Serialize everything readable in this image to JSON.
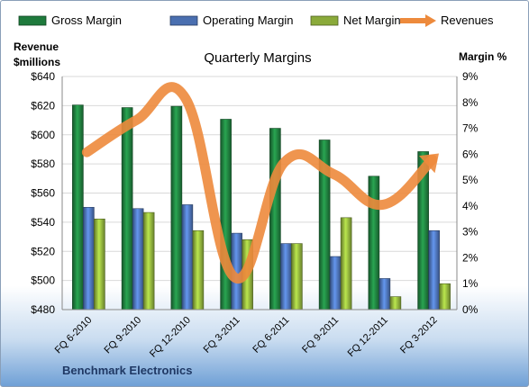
{
  "chart_data": {
    "type": "bar",
    "title": "Quarterly Margins",
    "categories": [
      "FQ 6-2010",
      "FQ 9-2010",
      "FQ 12-2010",
      "FQ 3-2011",
      "FQ 6-2011",
      "FQ 9-2011",
      "FQ 12-2011",
      "FQ 3-2012"
    ],
    "series": [
      {
        "name": "Gross Margin",
        "color": "#1e7a3c",
        "axis": "right",
        "unit": "%",
        "values": [
          7.9,
          7.8,
          7.85,
          7.35,
          7.0,
          6.55,
          5.15,
          6.1
        ]
      },
      {
        "name": "Operating Margin",
        "color": "#4a6fb0",
        "axis": "right",
        "unit": "%",
        "values": [
          3.95,
          3.9,
          4.05,
          2.95,
          2.55,
          2.05,
          1.2,
          3.05
        ]
      },
      {
        "name": "Net Margin",
        "color": "#8aaa3a",
        "axis": "right",
        "unit": "%",
        "values": [
          3.5,
          3.75,
          3.05,
          2.7,
          2.55,
          3.55,
          0.5,
          1.0
        ]
      },
      {
        "name": "Revenues",
        "type": "line",
        "color": "#ed8a3c",
        "axis": "left",
        "unit": "$millions",
        "values": [
          588,
          610,
          625,
          502,
          581,
          573,
          552,
          583
        ]
      }
    ],
    "left_axis": {
      "label_line1": "Revenue",
      "label_line2": "$millions",
      "ylim": [
        480,
        640
      ],
      "ticks": [
        480,
        500,
        520,
        540,
        560,
        580,
        600,
        620,
        640
      ],
      "tick_labels": [
        "$480",
        "$500",
        "$520",
        "$540",
        "$560",
        "$580",
        "$600",
        "$620",
        "$640"
      ]
    },
    "right_axis": {
      "label": "Margin %",
      "ylim": [
        0,
        9
      ],
      "ticks": [
        0,
        1,
        2,
        3,
        4,
        5,
        6,
        7,
        8,
        9
      ],
      "tick_labels": [
        "0%",
        "1%",
        "2%",
        "3%",
        "4%",
        "5%",
        "6%",
        "7%",
        "8%",
        "9%"
      ]
    },
    "legend_position": "top",
    "grid": true
  },
  "footer": "Benchmark Electronics"
}
